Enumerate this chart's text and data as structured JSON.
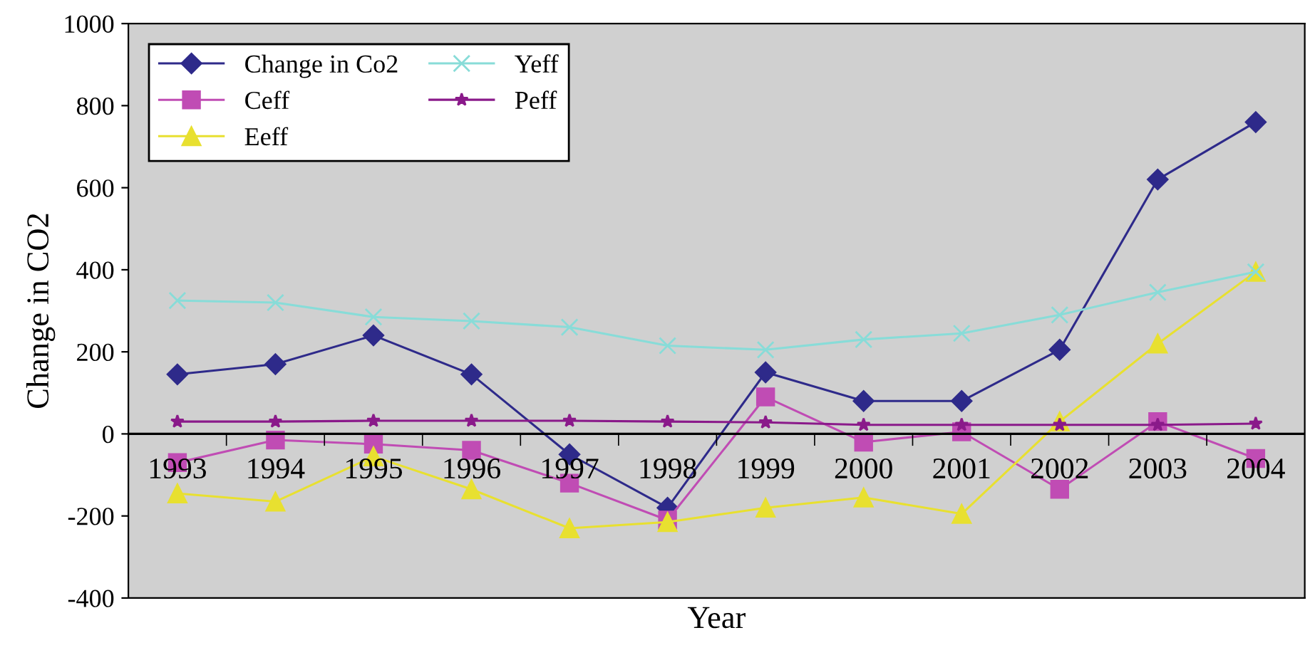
{
  "chart_data": {
    "type": "line",
    "xlabel": "Year",
    "ylabel": "Change in CO2",
    "categories": [
      "1993",
      "1994",
      "1995",
      "1996",
      "1997",
      "1998",
      "1999",
      "2000",
      "2001",
      "2002",
      "2003",
      "2004"
    ],
    "series": [
      {
        "name": "Change in Co2",
        "color": "#2e2a8a",
        "marker": "diamond",
        "values": [
          145,
          170,
          240,
          145,
          -50,
          -180,
          150,
          80,
          80,
          205,
          620,
          760
        ]
      },
      {
        "name": "Ceff",
        "color": "#c04cb4",
        "marker": "square",
        "values": [
          -70,
          -15,
          -25,
          -40,
          -120,
          -210,
          90,
          -20,
          5,
          -135,
          30,
          -60
        ]
      },
      {
        "name": "Eeff",
        "color": "#e8e030",
        "marker": "triangle",
        "values": [
          -145,
          -165,
          -55,
          -135,
          -230,
          -215,
          -180,
          -155,
          -195,
          30,
          220,
          395
        ]
      },
      {
        "name": "Yeff",
        "color": "#88dcd8",
        "marker": "cross",
        "values": [
          325,
          320,
          285,
          275,
          260,
          215,
          205,
          230,
          245,
          290,
          345,
          395
        ]
      },
      {
        "name": "Peff",
        "color": "#8a1a8a",
        "marker": "star",
        "values": [
          30,
          30,
          32,
          32,
          32,
          30,
          28,
          22,
          22,
          22,
          22,
          25
        ]
      }
    ],
    "ylim": [
      -400,
      1000
    ],
    "yticks": [
      -400,
      -200,
      0,
      200,
      400,
      600,
      800,
      1000
    ],
    "grid": false,
    "legend": "top left",
    "line_style": "solid"
  }
}
